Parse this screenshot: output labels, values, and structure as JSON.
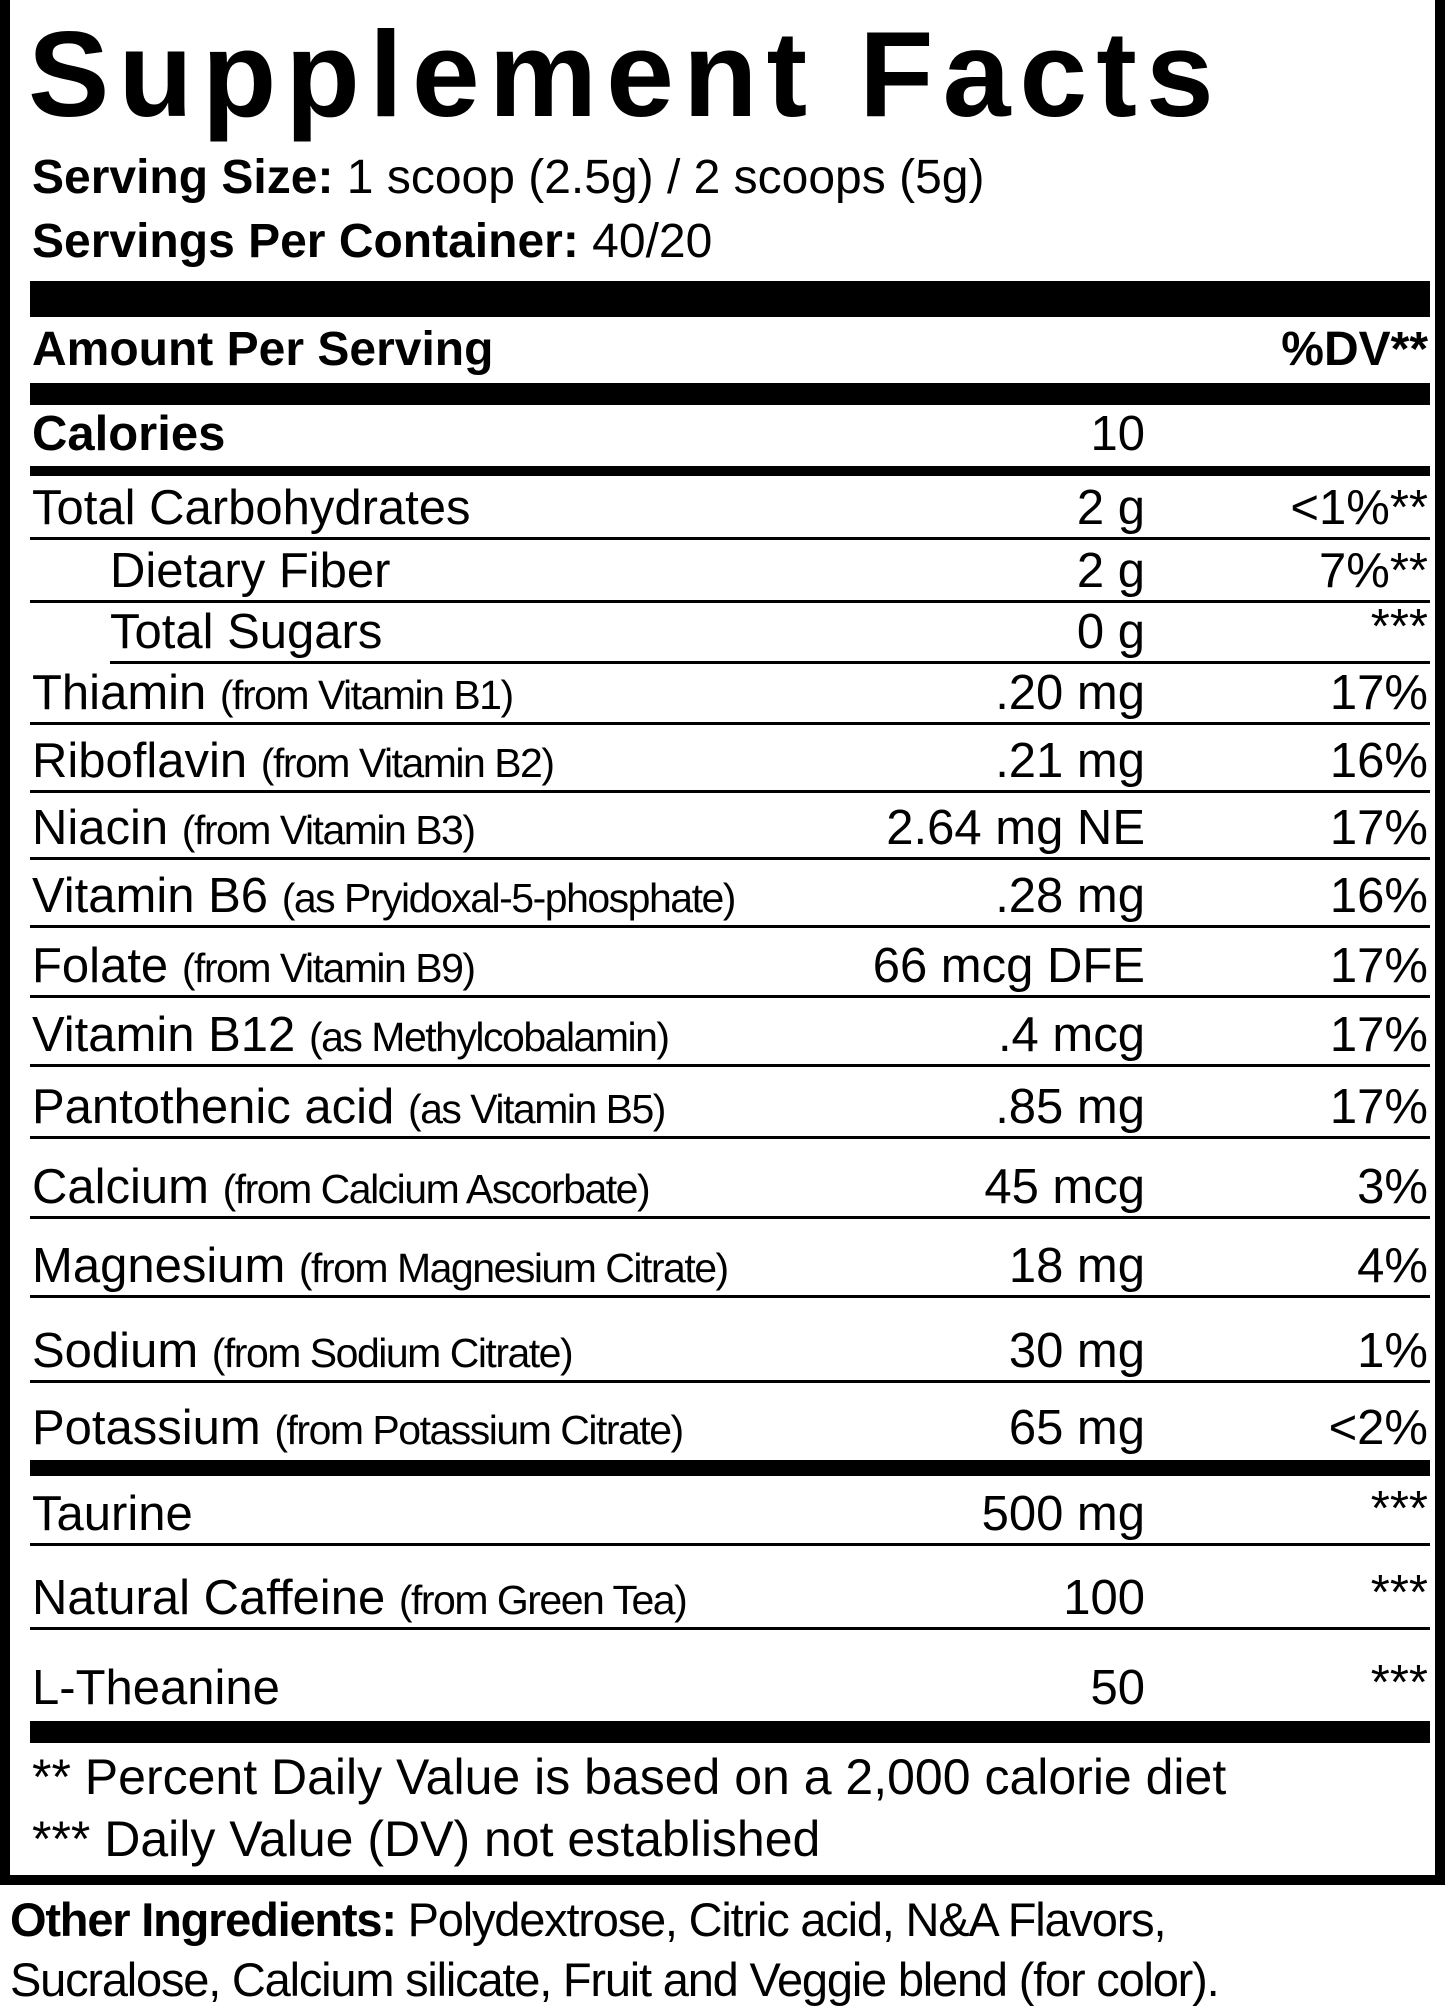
{
  "title": "Supplement Facts",
  "serving_size": {
    "label": "Serving Size:",
    "value": "1 scoop (2.5g) / 2 scoops (5g)"
  },
  "servings_per_container": {
    "label": "Servings Per Container:",
    "value": "40/20"
  },
  "header": {
    "amount_label": "Amount Per Serving",
    "dv_label": "%DV**"
  },
  "rows": [
    {
      "name": "Calories",
      "qualifier": "",
      "amount": "10",
      "dv": "",
      "bold": true
    },
    {
      "name": "Total Carbohydrates",
      "qualifier": "",
      "amount": "2 g",
      "dv": "<1%**"
    },
    {
      "name": "Dietary Fiber",
      "qualifier": "",
      "amount": "2 g",
      "dv": "7%**",
      "indent": true
    },
    {
      "name": "Total Sugars",
      "qualifier": "",
      "amount": "0 g",
      "dv": "***",
      "indent": true
    },
    {
      "name": "Thiamin",
      "qualifier": "(from Vitamin B1)",
      "amount": ".20 mg",
      "dv": "17%"
    },
    {
      "name": "Riboflavin",
      "qualifier": "(from Vitamin B2)",
      "amount": ".21 mg",
      "dv": "16%"
    },
    {
      "name": "Niacin",
      "qualifier": "(from Vitamin B3)",
      "amount": "2.64 mg NE",
      "dv": "17%"
    },
    {
      "name": "Vitamin B6",
      "qualifier": "(as Pryidoxal-5-phosphate)",
      "amount": ".28 mg",
      "dv": "16%"
    },
    {
      "name": "Folate",
      "qualifier": "(from Vitamin B9)",
      "amount": "66 mcg DFE",
      "dv": "17%"
    },
    {
      "name": "Vitamin B12",
      "qualifier": "(as Methylcobalamin)",
      "amount": ".4 mcg",
      "dv": "17%"
    },
    {
      "name": "Pantothenic acid",
      "qualifier": "(as Vitamin B5)",
      "amount": ".85 mg",
      "dv": "17%"
    },
    {
      "name": "Calcium",
      "qualifier": "(from Calcium Ascorbate)",
      "amount": "45 mcg",
      "dv": "3%"
    },
    {
      "name": "Magnesium",
      "qualifier": "(from Magnesium Citrate)",
      "amount": "18 mg",
      "dv": "4%"
    },
    {
      "name": "Sodium",
      "qualifier": "(from Sodium Citrate)",
      "amount": "30 mg",
      "dv": "1%"
    },
    {
      "name": "Potassium",
      "qualifier": "(from Potassium Citrate)",
      "amount": "65 mg",
      "dv": "<2%"
    },
    {
      "name": "Taurine",
      "qualifier": "",
      "amount": "500 mg",
      "dv": "***"
    },
    {
      "name": "Natural Caffeine",
      "qualifier": "(from Green Tea)",
      "amount": "100",
      "dv": "***"
    },
    {
      "name": "L-Theanine",
      "qualifier": "",
      "amount": "50",
      "dv": "***"
    }
  ],
  "footnotes": [
    "** Percent Daily Value is based on a 2,000 calorie diet",
    "*** Daily Value (DV) not established"
  ],
  "other_ingredients": {
    "label": "Other Ingredients:",
    "line1": "Polydextrose, Citric acid, N&A Flavors,",
    "line2": "Sucralose, Calcium silicate, Fruit and Veggie blend (for color)."
  }
}
